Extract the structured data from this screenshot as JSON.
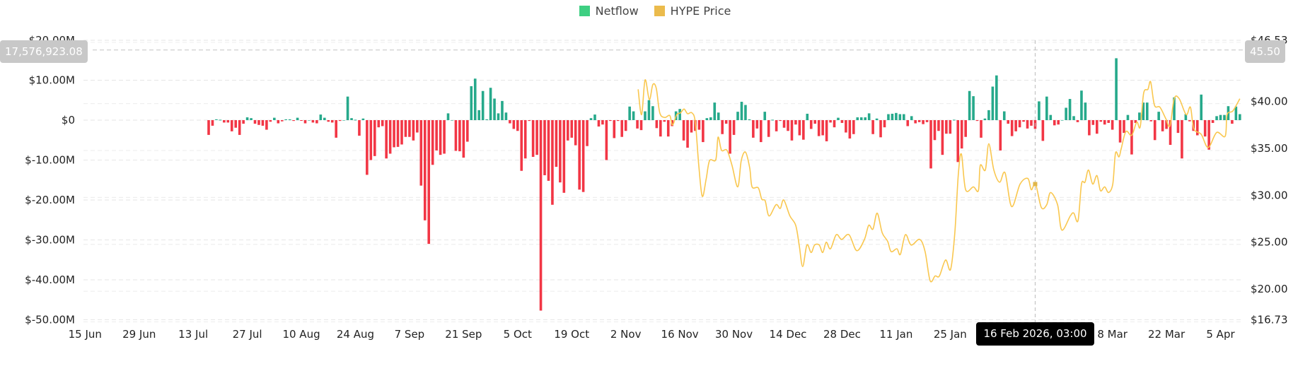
{
  "legend": [
    {
      "label": "Netflow",
      "color": "#3ecf82"
    },
    {
      "label": "HYPE Price",
      "color": "#ebbb4c"
    }
  ],
  "colors": {
    "positive": "#26a98b",
    "negative": "#f23645",
    "price": "#f9c74f"
  },
  "crosshair": {
    "left_value": "17,576,923.08",
    "right_value": "45.50",
    "date_label": "16 Feb 2026, 03:00",
    "day_index": 214
  },
  "chart_data": {
    "type": "bar+line",
    "title": "",
    "start_date": "17 Jul 2025",
    "y_left": {
      "label": "Netflow",
      "range": [
        -50,
        20
      ],
      "unit": "M USD",
      "ticks": [
        {
          "v": 20,
          "label": "$20.00M"
        },
        {
          "v": 10,
          "label": "$10.00M"
        },
        {
          "v": 0,
          "label": "$0"
        },
        {
          "v": -10,
          "label": "$-10.00M"
        },
        {
          "v": -20,
          "label": "$-20.00M"
        },
        {
          "v": -30,
          "label": "$-30.00M"
        },
        {
          "v": -40,
          "label": "$-40.00M"
        },
        {
          "v": -50,
          "label": "$-50.00M"
        }
      ]
    },
    "y_right": {
      "label": "HYPE Price",
      "range": [
        16.73,
        46.53
      ],
      "ticks": [
        {
          "v": 46.53,
          "label": "$46.53"
        },
        {
          "v": 40,
          "label": "$40.00"
        },
        {
          "v": 35,
          "label": "$35.00"
        },
        {
          "v": 30,
          "label": "$30.00"
        },
        {
          "v": 25,
          "label": "$25.00"
        },
        {
          "v": 20,
          "label": "$20.00"
        },
        {
          "v": 16.73,
          "label": "$16.73"
        }
      ]
    },
    "x_ticks": [
      {
        "d": -32,
        "label": "15 Jun"
      },
      {
        "d": -18,
        "label": "29 Jun"
      },
      {
        "d": -4,
        "label": "13 Jul"
      },
      {
        "d": 10,
        "label": "27 Jul"
      },
      {
        "d": 24,
        "label": "10 Aug"
      },
      {
        "d": 38,
        "label": "24 Aug"
      },
      {
        "d": 52,
        "label": "7 Sep"
      },
      {
        "d": 66,
        "label": "21 Sep"
      },
      {
        "d": 80,
        "label": "5 Oct"
      },
      {
        "d": 94,
        "label": "19 Oct"
      },
      {
        "d": 108,
        "label": "2 Nov"
      },
      {
        "d": 122,
        "label": "16 Nov"
      },
      {
        "d": 136,
        "label": "30 Nov"
      },
      {
        "d": 150,
        "label": "14 Dec"
      },
      {
        "d": 164,
        "label": "28 Dec"
      },
      {
        "d": 178,
        "label": "11 Jan"
      },
      {
        "d": 192,
        "label": "25 Jan"
      },
      {
        "d": 234,
        "label": "8 Mar"
      },
      {
        "d": 248,
        "label": "22 Mar"
      },
      {
        "d": 262,
        "label": "5 Apr"
      }
    ],
    "netflow_millions": [
      -3.7,
      -1.4,
      0.2,
      0.1,
      -0.6,
      -0.6,
      -2.8,
      -1.9,
      -3.7,
      -0.9,
      0.7,
      0.5,
      -0.9,
      -1.2,
      -1.4,
      -2.4,
      -0.4,
      0.6,
      -0.8,
      -0.3,
      0.2,
      0.2,
      -0.2,
      0.6,
      -0.1,
      -0.8,
      0,
      -0.6,
      -0.8,
      1.4,
      0.6,
      -0.4,
      -0.6,
      -4.4,
      -0.2,
      0,
      5.9,
      0.5,
      0.1,
      -3.9,
      0.4,
      -13.7,
      -10.0,
      -9.0,
      -1.8,
      -1.5,
      -9.6,
      -8.4,
      -6.8,
      -6.7,
      -6.1,
      -4.2,
      -4.2,
      -5.1,
      -3.1,
      -16.4,
      -25.1,
      -31.0,
      -11.2,
      -7.6,
      -8.7,
      -8.4,
      1.7,
      0,
      -7.7,
      -7.8,
      -9.4,
      -5.4,
      8.5,
      10.4,
      2.5,
      7.3,
      0.2,
      8.1,
      5.4,
      1.7,
      4.8,
      1.9,
      -0.8,
      -2.2,
      -2.7,
      -12.7,
      -9.6,
      -0.2,
      -9.2,
      -8.7,
      -47.7,
      -13.8,
      -15.2,
      -21.2,
      -11.7,
      -15.6,
      -18.2,
      -5.1,
      -4.4,
      -6.3,
      -17.4,
      -18.0,
      -6.5,
      0.5,
      1.4,
      -1.6,
      -1.1,
      -10.0,
      -0.2,
      -4.5,
      -0.2,
      -4.2,
      -2.7,
      3.4,
      2.2,
      -2.1,
      -2.5,
      2.2,
      5.0,
      3.5,
      -2.0,
      -4.1,
      -0.4,
      -4.1,
      -1.5,
      2.2,
      2.8,
      -5.1,
      -6.9,
      -3.1,
      -2.7,
      -2.4,
      -5.5,
      0.5,
      0.7,
      4.4,
      1.9,
      -3.5,
      -0.9,
      -8.4,
      -3.7,
      2.1,
      4.6,
      3.8,
      0.2,
      -4.4,
      -2.1,
      -5.5,
      2.1,
      -4.2,
      0.1,
      -2.8,
      -0.2,
      -1.9,
      -2.7,
      -5.1,
      -1.1,
      -3.8,
      -4.9,
      1.6,
      -2.2,
      -0.9,
      -4.0,
      -3.8,
      -5.3,
      -0.6,
      -1.8,
      0.6,
      -0.7,
      -3.1,
      -4.6,
      -3.5,
      0.7,
      0.7,
      0.7,
      1.7,
      -3.5,
      0.4,
      -4.3,
      -1.8,
      1.5,
      1.6,
      1.8,
      1.5,
      1.5,
      -1.5,
      1.0,
      -0.8,
      -0.5,
      -1.0,
      -0.5,
      -12.1,
      -5.0,
      -2.7,
      -8.7,
      -3.4,
      -3.4,
      0.1,
      -10.5,
      -7.1,
      -4.2,
      7.3,
      6.0,
      -0.2,
      -4.4,
      0.4,
      2.5,
      8.4,
      11.2,
      -7.6,
      2.2,
      -0.9,
      -4.0,
      -2.8,
      -1.8,
      -0.4,
      -2.1,
      -1.4,
      -2.2,
      4.7,
      -5.2,
      5.9,
      1.3,
      -1.3,
      -1.1,
      0,
      3.1,
      5.3,
      1.0,
      -0.5,
      7.4,
      4.4,
      -3.8,
      -1.2,
      -3.4,
      -0.4,
      -1.1,
      -0.7,
      -2.4,
      15.5,
      -5.6,
      -3.2,
      1.3,
      -8.6,
      -0.7,
      1.9,
      4.4,
      4.4,
      -0.3,
      -5.0,
      2.1,
      -2.8,
      -2.2,
      -6.2,
      5.7,
      -3.2,
      -9.6,
      1.5,
      -0.3,
      -2.7,
      -3.8,
      6.4,
      -4.1,
      -7.4,
      -0.7,
      1.0,
      1.3,
      1.3,
      3.5,
      -0.9,
      3.4,
      1.5
    ],
    "price": [
      [
        111.2,
        41.3
      ],
      [
        112.1,
        38.6
      ],
      [
        113.0,
        42.3
      ],
      [
        114.1,
        40.2
      ],
      [
        115.0,
        41.8
      ],
      [
        115.9,
        41.4
      ],
      [
        116.8,
        38.8
      ],
      [
        118.1,
        38.3
      ],
      [
        119.4,
        38.5
      ],
      [
        120.1,
        37.5
      ],
      [
        121.2,
        38.6
      ],
      [
        122.2,
        38.8
      ],
      [
        123.1,
        39.2
      ],
      [
        124.0,
        38.7
      ],
      [
        125.1,
        38.8
      ],
      [
        126.0,
        37.8
      ],
      [
        126.9,
        33.2
      ],
      [
        127.8,
        29.9
      ],
      [
        128.8,
        31.7
      ],
      [
        129.7,
        33.7
      ],
      [
        131.3,
        33.8
      ],
      [
        131.9,
        36.2
      ],
      [
        132.8,
        34.8
      ],
      [
        134.2,
        34.8
      ],
      [
        135.5,
        33.2
      ],
      [
        137.0,
        30.9
      ],
      [
        137.9,
        33.7
      ],
      [
        139.0,
        34.6
      ],
      [
        140.1,
        32.9
      ],
      [
        140.7,
        30.9
      ],
      [
        142.3,
        30.8
      ],
      [
        143.2,
        29.6
      ],
      [
        144.1,
        29.4
      ],
      [
        145.1,
        27.8
      ],
      [
        146.9,
        29.0
      ],
      [
        148.0,
        28.6
      ],
      [
        148.9,
        29.5
      ],
      [
        150.5,
        27.8
      ],
      [
        152.0,
        26.8
      ],
      [
        152.9,
        24.7
      ],
      [
        153.8,
        22.4
      ],
      [
        154.9,
        24.7
      ],
      [
        156.0,
        23.9
      ],
      [
        156.9,
        24.7
      ],
      [
        158.1,
        24.7
      ],
      [
        159.0,
        23.9
      ],
      [
        159.9,
        25.0
      ],
      [
        161.0,
        24.3
      ],
      [
        162.5,
        25.8
      ],
      [
        163.9,
        25.3
      ],
      [
        165.8,
        25.8
      ],
      [
        167.8,
        24.1
      ],
      [
        169.8,
        25.3
      ],
      [
        170.9,
        26.8
      ],
      [
        172.0,
        26.4
      ],
      [
        173.1,
        28.1
      ],
      [
        174.4,
        26.0
      ],
      [
        175.8,
        25.1
      ],
      [
        176.7,
        24.0
      ],
      [
        178.2,
        24.3
      ],
      [
        179.1,
        23.7
      ],
      [
        180.4,
        25.8
      ],
      [
        181.9,
        24.7
      ],
      [
        184.1,
        25.3
      ],
      [
        185.5,
        24.0
      ],
      [
        186.8,
        20.9
      ],
      [
        188.1,
        21.4
      ],
      [
        189.2,
        21.4
      ],
      [
        190.8,
        23.1
      ],
      [
        192.1,
        22.1
      ],
      [
        193.2,
        26.0
      ],
      [
        194.1,
        32.2
      ],
      [
        194.9,
        34.4
      ],
      [
        196.0,
        30.6
      ],
      [
        198.0,
        30.9
      ],
      [
        199.3,
        30.5
      ],
      [
        199.8,
        33.2
      ],
      [
        201.1,
        32.7
      ],
      [
        202.0,
        35.5
      ],
      [
        203.3,
        32.7
      ],
      [
        204.8,
        31.4
      ],
      [
        206.2,
        32.4
      ],
      [
        207.9,
        28.8
      ],
      [
        210.1,
        31.2
      ],
      [
        212.1,
        31.8
      ],
      [
        213.0,
        30.6
      ],
      [
        214.1,
        31.2
      ],
      [
        215.6,
        28.7
      ],
      [
        217.0,
        29.0
      ],
      [
        218.0,
        30.3
      ],
      [
        219.8,
        29.0
      ],
      [
        220.9,
        26.3
      ],
      [
        223.1,
        27.8
      ],
      [
        224.0,
        28.1
      ],
      [
        225.1,
        27.3
      ],
      [
        226.0,
        31.2
      ],
      [
        226.9,
        31.4
      ],
      [
        227.8,
        32.7
      ],
      [
        228.9,
        31.2
      ],
      [
        230.0,
        32.1
      ],
      [
        230.9,
        30.5
      ],
      [
        232.0,
        30.9
      ],
      [
        233.0,
        30.3
      ],
      [
        234.1,
        31.2
      ],
      [
        234.8,
        34.5
      ],
      [
        235.7,
        34.1
      ],
      [
        236.3,
        35.0
      ],
      [
        237.5,
        36.8
      ],
      [
        239.0,
        36.4
      ],
      [
        240.3,
        37.8
      ],
      [
        241.2,
        37.3
      ],
      [
        242.1,
        40.9
      ],
      [
        243.2,
        41.3
      ],
      [
        243.9,
        42.1
      ],
      [
        244.9,
        39.6
      ],
      [
        246.3,
        39.4
      ],
      [
        247.8,
        38.2
      ],
      [
        248.9,
        37.4
      ],
      [
        250.0,
        40.3
      ],
      [
        251.3,
        40.3
      ],
      [
        253.1,
        38.6
      ],
      [
        254.2,
        39.4
      ],
      [
        255.1,
        37.1
      ],
      [
        257.0,
        36.5
      ],
      [
        258.8,
        35.1
      ],
      [
        261.0,
        36.7
      ],
      [
        263.2,
        36.3
      ],
      [
        263.7,
        38.6
      ],
      [
        265.2,
        39.0
      ],
      [
        267.0,
        40.3
      ]
    ]
  }
}
